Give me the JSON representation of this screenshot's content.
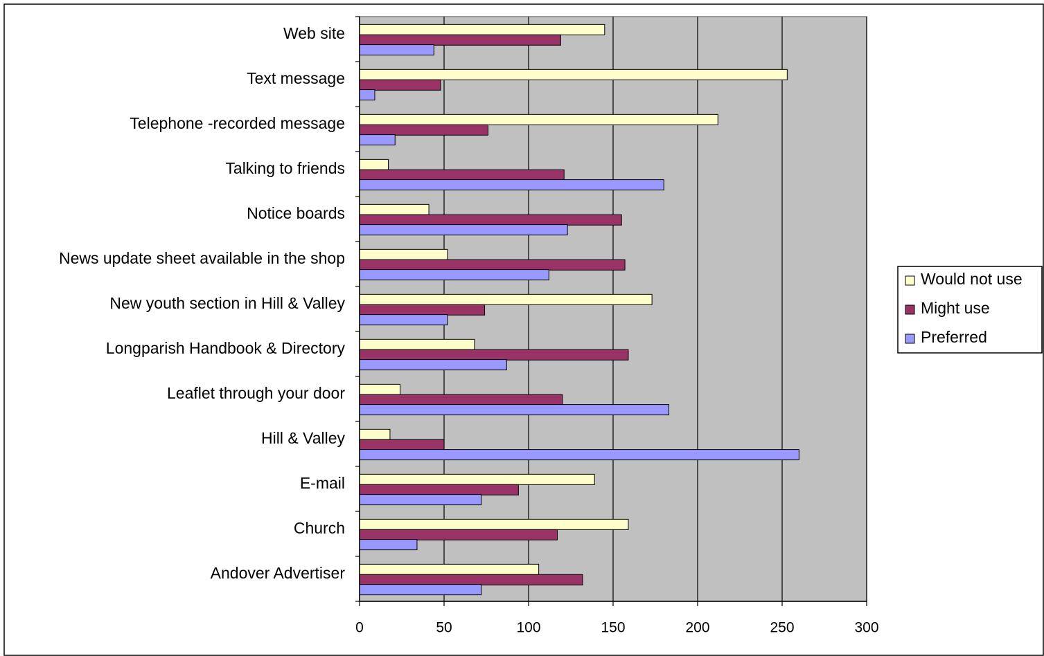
{
  "chart_data": {
    "type": "bar",
    "orientation": "horizontal",
    "categories": [
      "Web site",
      "Text message",
      "Telephone -recorded message",
      "Talking to friends",
      "Notice boards",
      "News update sheet available in the shop",
      "New youth section in Hill & Valley",
      "Longparish Handbook & Directory",
      "Leaflet through your door",
      "Hill & Valley",
      "E-mail",
      "Church",
      "Andover Advertiser"
    ],
    "series": [
      {
        "name": "Would not use",
        "color": "#FFFFCC",
        "values": [
          145,
          253,
          212,
          17,
          41,
          52,
          173,
          68,
          24,
          18,
          139,
          159,
          106
        ]
      },
      {
        "name": "Might use",
        "color": "#993366",
        "values": [
          119,
          48,
          76,
          121,
          155,
          157,
          74,
          159,
          120,
          50,
          94,
          117,
          132
        ]
      },
      {
        "name": "Preferred",
        "color": "#9999FF",
        "values": [
          44,
          9,
          21,
          180,
          123,
          112,
          52,
          87,
          183,
          260,
          72,
          34,
          72
        ]
      }
    ],
    "xlim": [
      0,
      300
    ],
    "xticks": [
      "0",
      "50",
      "100",
      "150",
      "200",
      "250",
      "300"
    ],
    "grid": true,
    "plot_background": "#C0C0C0",
    "legend_position": "right"
  }
}
